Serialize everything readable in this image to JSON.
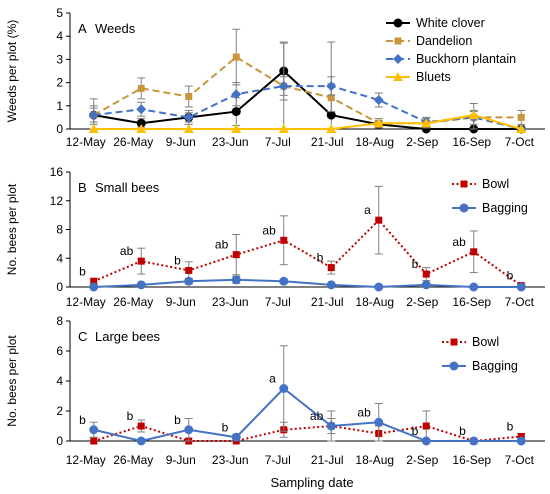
{
  "figure": {
    "xlabel": "Sampling date"
  },
  "chart_data": [
    {
      "type": "line",
      "panel_label": "A",
      "panel_title": "Weeds",
      "ylabel": "Weeds per plot (%)",
      "ylim": [
        0,
        5
      ],
      "yticks": [
        0,
        1,
        2,
        3,
        4,
        5
      ],
      "grid": false,
      "legend_position": "top-right",
      "categories": [
        "12-May",
        "26-May",
        "9-Jun",
        "23-Jun",
        "7-Jul",
        "21-Jul",
        "18-Aug",
        "2-Sep",
        "16-Sep",
        "7-Oct"
      ],
      "series": [
        {
          "name": "White clover",
          "color": "#000000",
          "marker": "circle",
          "dash": "solid",
          "values": [
            0.6,
            0.25,
            0.5,
            0.75,
            2.5,
            0.6,
            0.2,
            0.0,
            0.0,
            0.0
          ],
          "error": [
            0.7,
            0.2,
            0.3,
            0.6,
            1.25,
            3.15,
            0.15,
            0.05,
            0.05,
            0.05
          ]
        },
        {
          "name": "Dandelion",
          "color": "#C8963C",
          "marker": "square",
          "dash": "dash",
          "values": [
            0.6,
            1.75,
            1.4,
            3.1,
            1.85,
            1.35,
            0.25,
            0.25,
            0.5,
            0.5
          ],
          "error": [
            0.4,
            0.45,
            0.45,
            1.2,
            1.85,
            0.6,
            0.2,
            0.2,
            0.6,
            0.3
          ]
        },
        {
          "name": "Buckhorn plantain",
          "color": "#4472C4",
          "marker": "diamond",
          "dash": "dash",
          "values": [
            0.6,
            0.85,
            0.5,
            1.5,
            1.85,
            1.85,
            1.25,
            0.3,
            0.5,
            0.0
          ],
          "error": [
            0.3,
            0.3,
            0.2,
            0.5,
            0.4,
            0.4,
            0.3,
            0.2,
            0.3,
            0.05
          ]
        },
        {
          "name": "Bluets",
          "color": "#FFC000",
          "marker": "triangle",
          "dash": "solid",
          "values": [
            0.0,
            0.0,
            0.0,
            0.0,
            0.0,
            0.0,
            0.25,
            0.25,
            0.6,
            0.0
          ],
          "error": [
            0,
            0,
            0,
            0,
            0,
            0,
            0.1,
            0.1,
            0.15,
            0
          ]
        }
      ]
    },
    {
      "type": "line",
      "panel_label": "B",
      "panel_title": "Small bees",
      "ylabel": "No. bees per plot",
      "ylim": [
        0,
        16
      ],
      "yticks": [
        0,
        4,
        8,
        12,
        16
      ],
      "grid": false,
      "legend_position": "top-right",
      "categories": [
        "12-May",
        "26-May",
        "9-Jun",
        "23-Jun",
        "7-Jul",
        "21-Jul",
        "18-Aug",
        "2-Sep",
        "16-Sep",
        "7-Oct"
      ],
      "series": [
        {
          "name": "Bowl",
          "color": "#C00000",
          "marker": "square",
          "dash": "dot",
          "values": [
            0.8,
            3.6,
            2.3,
            4.5,
            6.5,
            2.7,
            9.3,
            1.8,
            4.9,
            0.2
          ],
          "error": [
            0.4,
            1.8,
            1.2,
            2.8,
            3.4,
            0.9,
            4.7,
            0.9,
            2.9,
            0.2
          ]
        },
        {
          "name": "Bagging",
          "color": "#4472C4",
          "marker": "circle",
          "dash": "solid",
          "values": [
            0.0,
            0.3,
            0.8,
            1.0,
            0.8,
            0.3,
            0.0,
            0.3,
            0.0,
            0.0
          ],
          "error": [
            0,
            0.15,
            0.4,
            0.5,
            0.3,
            0.1,
            0,
            0.2,
            0,
            0
          ]
        }
      ],
      "annotations": [
        {
          "category": "12-May",
          "value": 0.8,
          "text": "b"
        },
        {
          "category": "26-May",
          "value": 3.6,
          "text": "ab"
        },
        {
          "category": "9-Jun",
          "value": 2.3,
          "text": "b"
        },
        {
          "category": "23-Jun",
          "value": 4.5,
          "text": "ab"
        },
        {
          "category": "7-Jul",
          "value": 6.5,
          "text": "ab"
        },
        {
          "category": "21-Jul",
          "value": 2.7,
          "text": "b"
        },
        {
          "category": "18-Aug",
          "value": 9.3,
          "text": "a"
        },
        {
          "category": "2-Sep",
          "value": 1.8,
          "text": "b"
        },
        {
          "category": "16-Sep",
          "value": 4.9,
          "text": "ab"
        },
        {
          "category": "7-Oct",
          "value": 0.2,
          "text": "b"
        }
      ]
    },
    {
      "type": "line",
      "panel_label": "C",
      "panel_title": "Large bees",
      "ylabel": "No. bees per plot",
      "ylim": [
        0,
        8
      ],
      "yticks": [
        0,
        2,
        4,
        6,
        8
      ],
      "grid": false,
      "legend_position": "top-right",
      "categories": [
        "12-May",
        "26-May",
        "9-Jun",
        "23-Jun",
        "7-Jul",
        "21-Jul",
        "18-Aug",
        "2-Sep",
        "16-Sep",
        "7-Oct"
      ],
      "series": [
        {
          "name": "Bowl",
          "color": "#C00000",
          "marker": "square",
          "dash": "dot",
          "values": [
            0.0,
            1.0,
            0.0,
            0.0,
            0.75,
            1.0,
            0.5,
            1.0,
            0.0,
            0.3
          ],
          "error": [
            0,
            0.4,
            0,
            0,
            0.5,
            1.0,
            0.5,
            1.0,
            0,
            0.2
          ]
        },
        {
          "name": "Bagging",
          "color": "#4472C4",
          "marker": "circle",
          "dash": "solid",
          "values": [
            0.75,
            0.0,
            0.75,
            0.25,
            3.5,
            1.0,
            1.25,
            0.0,
            0.0,
            0.0
          ],
          "error": [
            0.5,
            0,
            0.75,
            0.2,
            2.85,
            0.5,
            1.25,
            0,
            0,
            0
          ]
        }
      ],
      "annotations": [
        {
          "category": "12-May",
          "value": 0.75,
          "text": "b"
        },
        {
          "category": "26-May",
          "value": 1.0,
          "text": "b"
        },
        {
          "category": "9-Jun",
          "value": 0.75,
          "text": "b"
        },
        {
          "category": "23-Jun",
          "value": 0.25,
          "text": "b"
        },
        {
          "category": "7-Jul",
          "value": 3.5,
          "text": "a"
        },
        {
          "category": "21-Jul",
          "value": 1.0,
          "text": "ab"
        },
        {
          "category": "18-Aug",
          "value": 1.25,
          "text": "ab"
        },
        {
          "category": "2-Sep",
          "value": 0.0,
          "text": "b"
        },
        {
          "category": "16-Sep",
          "value": 0.0,
          "text": "b"
        },
        {
          "category": "7-Oct",
          "value": 0.3,
          "text": "b"
        }
      ]
    }
  ]
}
